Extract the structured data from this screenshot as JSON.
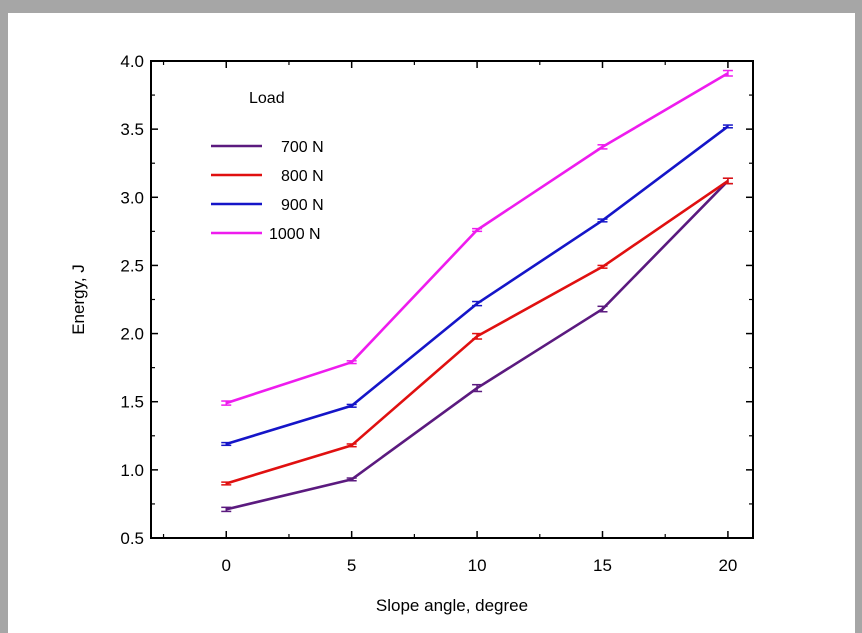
{
  "chart_data": {
    "type": "line",
    "title": "",
    "xlabel": "Slope angle, degree",
    "ylabel": "Energy, J",
    "x": [
      0,
      5,
      10,
      15,
      20
    ],
    "xticks": [
      0,
      5,
      10,
      15,
      20
    ],
    "xtick_labels": [
      "0",
      "5",
      "10",
      "15",
      "20"
    ],
    "yticks": [
      0.5,
      1.0,
      1.5,
      2.0,
      2.5,
      3.0,
      3.5,
      4.0
    ],
    "ytick_labels": [
      "0.5",
      "1.0",
      "1.5",
      "2.0",
      "2.5",
      "3.0",
      "3.5",
      "4.0"
    ],
    "xlim": [
      -3,
      21
    ],
    "ylim": [
      0.5,
      4.0
    ],
    "grid": false,
    "legend": {
      "title": "Load",
      "position": "top-left"
    },
    "series": [
      {
        "name": "700 N",
        "color": "#5b1a7f",
        "values": [
          0.71,
          0.93,
          1.6,
          2.18,
          3.12
        ],
        "errors": [
          0.015,
          0.01,
          0.025,
          0.02,
          0.02
        ]
      },
      {
        "name": "800 N",
        "color": "#e01010",
        "values": [
          0.9,
          1.18,
          1.98,
          2.49,
          3.12
        ],
        "errors": [
          0.01,
          0.01,
          0.02,
          0.01,
          0.02
        ]
      },
      {
        "name": "900 N",
        "color": "#1515c8",
        "values": [
          1.19,
          1.47,
          2.22,
          2.83,
          3.52
        ],
        "errors": [
          0.01,
          0.01,
          0.015,
          0.01,
          0.01
        ]
      },
      {
        "name": "1000 N",
        "color": "#ee1cee",
        "values": [
          1.49,
          1.79,
          2.76,
          3.37,
          3.91
        ],
        "errors": [
          0.015,
          0.01,
          0.01,
          0.015,
          0.02
        ]
      }
    ]
  }
}
